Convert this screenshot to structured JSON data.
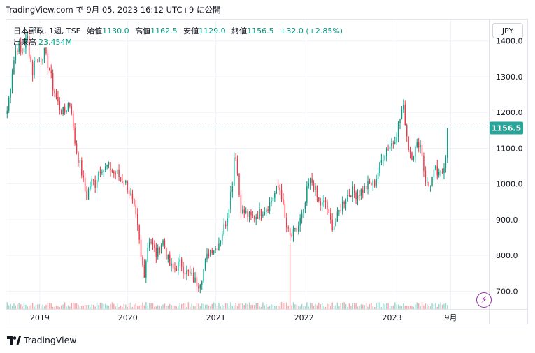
{
  "header": {
    "text": "TradingView.com で 9月 05, 2023 16:12 UTC+9 に公開"
  },
  "legend": {
    "symbol": "日本郵政, 1週, TSE",
    "open_label": "始値",
    "open": "1130.0",
    "high_label": "高値",
    "high": "1162.5",
    "low_label": "安値",
    "low": "1129.0",
    "close_label": "終値",
    "close": "1156.5",
    "change": "+32.0 (+2.85%)",
    "volume_label": "出来高",
    "volume": "23.454M"
  },
  "currency_button": "JPY",
  "logo_text": "TradingView",
  "colors": {
    "up": "#089981",
    "down": "#f23645",
    "volume_up": "#9fd8cd",
    "volume_down": "#f6a9ae",
    "last_price_bg": "#26a69a",
    "grid": "#f0f3fa"
  },
  "chart_data": {
    "type": "candlestick",
    "symbol": "日本郵政",
    "interval": "1週",
    "exchange": "TSE",
    "currency": "JPY",
    "last_price": 1156.5,
    "y_ticks": [
      "1400.0",
      "1300.0",
      "1200.0",
      "1100.0",
      "1000.0",
      "900.0",
      "800.0",
      "700.0"
    ],
    "y_tick_values": [
      1400,
      1300,
      1200,
      1100,
      1000,
      900,
      800,
      700
    ],
    "ylim": [
      650,
      1460
    ],
    "x_ticks": [
      "2019",
      "2020",
      "2021",
      "2022",
      "2023",
      "9月"
    ],
    "x_tick_values": [
      2019.0,
      2020.0,
      2021.0,
      2022.0,
      2023.0,
      2023.667
    ],
    "xlim": [
      2018.62,
      2024.1
    ],
    "price_path": [
      [
        2018.63,
        1205
      ],
      [
        2018.66,
        1260
      ],
      [
        2018.69,
        1320
      ],
      [
        2018.72,
        1370
      ],
      [
        2018.76,
        1390
      ],
      [
        2018.79,
        1360
      ],
      [
        2018.82,
        1385
      ],
      [
        2018.86,
        1410
      ],
      [
        2018.88,
        1370
      ],
      [
        2018.92,
        1310
      ],
      [
        2018.95,
        1360
      ],
      [
        2018.98,
        1340
      ],
      [
        2019.01,
        1350
      ],
      [
        2019.05,
        1370
      ],
      [
        2019.08,
        1345
      ],
      [
        2019.12,
        1310
      ],
      [
        2019.15,
        1270
      ],
      [
        2019.19,
        1240
      ],
      [
        2019.22,
        1215
      ],
      [
        2019.26,
        1200
      ],
      [
        2019.29,
        1205
      ],
      [
        2019.33,
        1230
      ],
      [
        2019.36,
        1210
      ],
      [
        2019.38,
        1150
      ],
      [
        2019.41,
        1100
      ],
      [
        2019.44,
        1070
      ],
      [
        2019.47,
        1040
      ],
      [
        2019.5,
        1000
      ],
      [
        2019.53,
        960
      ],
      [
        2019.56,
        990
      ],
      [
        2019.6,
        1010
      ],
      [
        2019.63,
        1000
      ],
      [
        2019.66,
        1030
      ],
      [
        2019.7,
        1050
      ],
      [
        2019.73,
        1040
      ],
      [
        2019.77,
        1050
      ],
      [
        2019.8,
        1045
      ],
      [
        2019.84,
        1030
      ],
      [
        2019.88,
        1030
      ],
      [
        2019.92,
        1010
      ],
      [
        2019.96,
        1010
      ],
      [
        2020.0,
        990
      ],
      [
        2020.04,
        960
      ],
      [
        2020.08,
        920
      ],
      [
        2020.12,
        860
      ],
      [
        2020.15,
        790
      ],
      [
        2020.19,
        750
      ],
      [
        2020.22,
        820
      ],
      [
        2020.25,
        850
      ],
      [
        2020.29,
        820
      ],
      [
        2020.33,
        800
      ],
      [
        2020.37,
        830
      ],
      [
        2020.4,
        840
      ],
      [
        2020.44,
        800
      ],
      [
        2020.48,
        770
      ],
      [
        2020.52,
        760
      ],
      [
        2020.56,
        770
      ],
      [
        2020.6,
        780
      ],
      [
        2020.64,
        760
      ],
      [
        2020.68,
        750
      ],
      [
        2020.72,
        740
      ],
      [
        2020.76,
        730
      ],
      [
        2020.8,
        720
      ],
      [
        2020.84,
        740
      ],
      [
        2020.88,
        780
      ],
      [
        2020.92,
        810
      ],
      [
        2020.96,
        820
      ],
      [
        2021.0,
        820
      ],
      [
        2021.04,
        840
      ],
      [
        2021.08,
        870
      ],
      [
        2021.12,
        900
      ],
      [
        2021.16,
        960
      ],
      [
        2021.19,
        1010
      ],
      [
        2021.21,
        1090
      ],
      [
        2021.23,
        1080
      ],
      [
        2021.26,
        980
      ],
      [
        2021.29,
        920
      ],
      [
        2021.33,
        920
      ],
      [
        2021.37,
        910
      ],
      [
        2021.41,
        905
      ],
      [
        2021.45,
        910
      ],
      [
        2021.5,
        920
      ],
      [
        2021.55,
        930
      ],
      [
        2021.6,
        940
      ],
      [
        2021.64,
        960
      ],
      [
        2021.68,
        980
      ],
      [
        2021.71,
        990
      ],
      [
        2021.74,
        980
      ],
      [
        2021.77,
        920
      ],
      [
        2021.8,
        880
      ],
      [
        2021.84,
        850
      ],
      [
        2021.88,
        860
      ],
      [
        2021.92,
        870
      ],
      [
        2021.96,
        900
      ],
      [
        2022.0,
        920
      ],
      [
        2022.04,
        990
      ],
      [
        2022.08,
        1010
      ],
      [
        2022.12,
        990
      ],
      [
        2022.16,
        950
      ],
      [
        2022.2,
        940
      ],
      [
        2022.25,
        950
      ],
      [
        2022.29,
        900
      ],
      [
        2022.33,
        880
      ],
      [
        2022.37,
        900
      ],
      [
        2022.41,
        930
      ],
      [
        2022.45,
        950
      ],
      [
        2022.5,
        970
      ],
      [
        2022.55,
        980
      ],
      [
        2022.6,
        970
      ],
      [
        2022.65,
        980
      ],
      [
        2022.7,
        990
      ],
      [
        2022.75,
        1000
      ],
      [
        2022.8,
        1000
      ],
      [
        2022.85,
        1040
      ],
      [
        2022.9,
        1080
      ],
      [
        2022.94,
        1100
      ],
      [
        2022.98,
        1110
      ],
      [
        2023.02,
        1120
      ],
      [
        2023.06,
        1150
      ],
      [
        2023.09,
        1180
      ],
      [
        2023.12,
        1220
      ],
      [
        2023.14,
        1200
      ],
      [
        2023.16,
        1150
      ],
      [
        2023.19,
        1100
      ],
      [
        2023.23,
        1080
      ],
      [
        2023.27,
        1100
      ],
      [
        2023.31,
        1120
      ],
      [
        2023.34,
        1090
      ],
      [
        2023.37,
        1020
      ],
      [
        2023.41,
        990
      ],
      [
        2023.45,
        1010
      ],
      [
        2023.49,
        1040
      ],
      [
        2023.53,
        1020
      ],
      [
        2023.57,
        1030
      ],
      [
        2023.61,
        1080
      ],
      [
        2023.647,
        1156.5
      ]
    ]
  }
}
